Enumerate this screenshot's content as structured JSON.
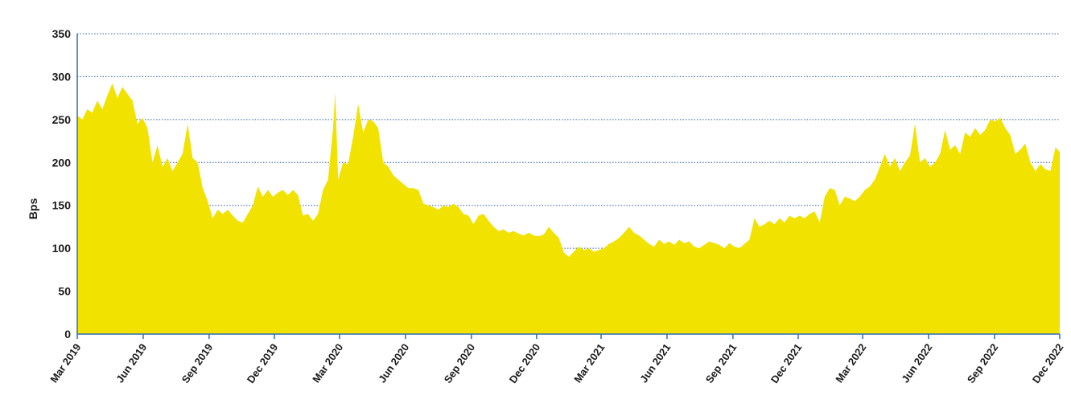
{
  "chart_data": {
    "type": "area",
    "title": "",
    "xlabel": "",
    "ylabel": "Bps",
    "ylim": [
      0,
      350
    ],
    "yticks": [
      0,
      50,
      100,
      150,
      200,
      250,
      300,
      350
    ],
    "xlim": [
      "2019-03-01",
      "2022-12-01"
    ],
    "xticks": [
      {
        "date": "2019-03-01",
        "label": "Mar 2019"
      },
      {
        "date": "2019-06-01",
        "label": "Jun 2019"
      },
      {
        "date": "2019-09-01",
        "label": "Sep 2019"
      },
      {
        "date": "2019-12-01",
        "label": "Dec 2019"
      },
      {
        "date": "2020-03-01",
        "label": "Mar 2020"
      },
      {
        "date": "2020-06-01",
        "label": "Jun 2020"
      },
      {
        "date": "2020-09-01",
        "label": "Sep 2020"
      },
      {
        "date": "2020-12-01",
        "label": "Dec 2020"
      },
      {
        "date": "2021-03-01",
        "label": "Mar 2021"
      },
      {
        "date": "2021-06-01",
        "label": "Jun 2021"
      },
      {
        "date": "2021-09-01",
        "label": "Sep 2021"
      },
      {
        "date": "2021-12-01",
        "label": "Dec 2021"
      },
      {
        "date": "2022-03-01",
        "label": "Mar 2022"
      },
      {
        "date": "2022-06-01",
        "label": "Jun 2022"
      },
      {
        "date": "2022-09-01",
        "label": "Sep 2022"
      },
      {
        "date": "2022-12-01",
        "label": "Dec 2022"
      }
    ],
    "grid": "horizontal dotted",
    "legend": "none",
    "fill_color": "#f1e200",
    "axis_color": "#2f6db5",
    "grid_color": "#2f5fa8",
    "series": [
      {
        "points": [
          [
            "2019-03-01",
            255
          ],
          [
            "2019-03-08",
            250
          ],
          [
            "2019-03-15",
            262
          ],
          [
            "2019-03-22",
            258
          ],
          [
            "2019-03-29",
            272
          ],
          [
            "2019-04-05",
            262
          ],
          [
            "2019-04-12",
            278
          ],
          [
            "2019-04-19",
            292
          ],
          [
            "2019-04-26",
            275
          ],
          [
            "2019-05-03",
            288
          ],
          [
            "2019-05-10",
            280
          ],
          [
            "2019-05-17",
            272
          ],
          [
            "2019-05-24",
            245
          ],
          [
            "2019-05-31",
            252
          ],
          [
            "2019-06-07",
            240
          ],
          [
            "2019-06-14",
            200
          ],
          [
            "2019-06-21",
            220
          ],
          [
            "2019-06-28",
            195
          ],
          [
            "2019-07-05",
            205
          ],
          [
            "2019-07-12",
            190
          ],
          [
            "2019-07-19",
            200
          ],
          [
            "2019-07-26",
            210
          ],
          [
            "2019-08-02",
            245
          ],
          [
            "2019-08-09",
            205
          ],
          [
            "2019-08-16",
            200
          ],
          [
            "2019-08-23",
            170
          ],
          [
            "2019-08-30",
            155
          ],
          [
            "2019-09-06",
            135
          ],
          [
            "2019-09-13",
            145
          ],
          [
            "2019-09-20",
            140
          ],
          [
            "2019-09-27",
            145
          ],
          [
            "2019-10-04",
            138
          ],
          [
            "2019-10-11",
            132
          ],
          [
            "2019-10-18",
            130
          ],
          [
            "2019-10-25",
            140
          ],
          [
            "2019-11-01",
            150
          ],
          [
            "2019-11-08",
            172
          ],
          [
            "2019-11-15",
            160
          ],
          [
            "2019-11-22",
            168
          ],
          [
            "2019-11-29",
            160
          ],
          [
            "2019-12-06",
            165
          ],
          [
            "2019-12-13",
            168
          ],
          [
            "2019-12-20",
            162
          ],
          [
            "2019-12-27",
            168
          ],
          [
            "2020-01-03",
            162
          ],
          [
            "2020-01-10",
            138
          ],
          [
            "2020-01-17",
            140
          ],
          [
            "2020-01-24",
            132
          ],
          [
            "2020-01-31",
            140
          ],
          [
            "2020-02-07",
            168
          ],
          [
            "2020-02-14",
            180
          ],
          [
            "2020-02-21",
            240
          ],
          [
            "2020-02-24",
            282
          ],
          [
            "2020-02-28",
            180
          ],
          [
            "2020-03-06",
            200
          ],
          [
            "2020-03-13",
            198
          ],
          [
            "2020-03-20",
            230
          ],
          [
            "2020-03-27",
            268
          ],
          [
            "2020-04-03",
            235
          ],
          [
            "2020-04-10",
            250
          ],
          [
            "2020-04-17",
            248
          ],
          [
            "2020-04-24",
            240
          ],
          [
            "2020-05-01",
            200
          ],
          [
            "2020-05-08",
            195
          ],
          [
            "2020-05-15",
            185
          ],
          [
            "2020-05-22",
            180
          ],
          [
            "2020-05-29",
            175
          ],
          [
            "2020-06-05",
            170
          ],
          [
            "2020-06-12",
            170
          ],
          [
            "2020-06-19",
            168
          ],
          [
            "2020-06-26",
            152
          ],
          [
            "2020-07-03",
            150
          ],
          [
            "2020-07-10",
            148
          ],
          [
            "2020-07-17",
            145
          ],
          [
            "2020-07-24",
            150
          ],
          [
            "2020-07-31",
            148
          ],
          [
            "2020-08-07",
            152
          ],
          [
            "2020-08-14",
            148
          ],
          [
            "2020-08-21",
            140
          ],
          [
            "2020-08-28",
            138
          ],
          [
            "2020-09-04",
            128
          ],
          [
            "2020-09-11",
            138
          ],
          [
            "2020-09-18",
            140
          ],
          [
            "2020-09-25",
            132
          ],
          [
            "2020-10-02",
            125
          ],
          [
            "2020-10-09",
            120
          ],
          [
            "2020-10-16",
            122
          ],
          [
            "2020-10-23",
            118
          ],
          [
            "2020-10-30",
            120
          ],
          [
            "2020-11-06",
            117
          ],
          [
            "2020-11-13",
            115
          ],
          [
            "2020-11-20",
            118
          ],
          [
            "2020-11-27",
            115
          ],
          [
            "2020-12-04",
            114
          ],
          [
            "2020-12-11",
            116
          ],
          [
            "2020-12-18",
            125
          ],
          [
            "2020-12-25",
            118
          ],
          [
            "2021-01-01",
            112
          ],
          [
            "2021-01-08",
            95
          ],
          [
            "2021-01-15",
            90
          ],
          [
            "2021-01-22",
            96
          ],
          [
            "2021-01-29",
            102
          ],
          [
            "2021-02-05",
            98
          ],
          [
            "2021-02-12",
            100
          ],
          [
            "2021-02-19",
            96
          ],
          [
            "2021-02-26",
            98
          ],
          [
            "2021-03-05",
            100
          ],
          [
            "2021-03-12",
            105
          ],
          [
            "2021-03-19",
            108
          ],
          [
            "2021-03-26",
            112
          ],
          [
            "2021-04-02",
            118
          ],
          [
            "2021-04-09",
            125
          ],
          [
            "2021-04-16",
            118
          ],
          [
            "2021-04-23",
            115
          ],
          [
            "2021-04-30",
            110
          ],
          [
            "2021-05-07",
            105
          ],
          [
            "2021-05-14",
            102
          ],
          [
            "2021-05-21",
            110
          ],
          [
            "2021-05-28",
            105
          ],
          [
            "2021-06-04",
            108
          ],
          [
            "2021-06-11",
            104
          ],
          [
            "2021-06-18",
            110
          ],
          [
            "2021-06-25",
            106
          ],
          [
            "2021-07-02",
            108
          ],
          [
            "2021-07-09",
            102
          ],
          [
            "2021-07-16",
            100
          ],
          [
            "2021-07-23",
            104
          ],
          [
            "2021-07-30",
            108
          ],
          [
            "2021-08-06",
            106
          ],
          [
            "2021-08-13",
            104
          ],
          [
            "2021-08-20",
            100
          ],
          [
            "2021-08-27",
            106
          ],
          [
            "2021-09-03",
            102
          ],
          [
            "2021-09-10",
            100
          ],
          [
            "2021-09-17",
            105
          ],
          [
            "2021-09-24",
            110
          ],
          [
            "2021-10-01",
            135
          ],
          [
            "2021-10-08",
            125
          ],
          [
            "2021-10-15",
            128
          ],
          [
            "2021-10-22",
            132
          ],
          [
            "2021-10-29",
            128
          ],
          [
            "2021-11-05",
            135
          ],
          [
            "2021-11-12",
            130
          ],
          [
            "2021-11-19",
            138
          ],
          [
            "2021-11-26",
            135
          ],
          [
            "2021-12-03",
            138
          ],
          [
            "2021-12-10",
            135
          ],
          [
            "2021-12-17",
            140
          ],
          [
            "2021-12-24",
            143
          ],
          [
            "2021-12-31",
            130
          ],
          [
            "2022-01-07",
            160
          ],
          [
            "2022-01-14",
            170
          ],
          [
            "2022-01-21",
            168
          ],
          [
            "2022-01-28",
            150
          ],
          [
            "2022-02-04",
            160
          ],
          [
            "2022-02-11",
            158
          ],
          [
            "2022-02-18",
            155
          ],
          [
            "2022-02-25",
            160
          ],
          [
            "2022-03-04",
            168
          ],
          [
            "2022-03-11",
            172
          ],
          [
            "2022-03-18",
            180
          ],
          [
            "2022-03-25",
            195
          ],
          [
            "2022-04-01",
            210
          ],
          [
            "2022-04-08",
            195
          ],
          [
            "2022-04-15",
            205
          ],
          [
            "2022-04-22",
            190
          ],
          [
            "2022-04-29",
            200
          ],
          [
            "2022-05-06",
            208
          ],
          [
            "2022-05-13",
            245
          ],
          [
            "2022-05-20",
            200
          ],
          [
            "2022-05-27",
            205
          ],
          [
            "2022-06-03",
            195
          ],
          [
            "2022-06-10",
            200
          ],
          [
            "2022-06-17",
            210
          ],
          [
            "2022-06-24",
            238
          ],
          [
            "2022-07-01",
            215
          ],
          [
            "2022-07-08",
            220
          ],
          [
            "2022-07-15",
            210
          ],
          [
            "2022-07-22",
            235
          ],
          [
            "2022-07-29",
            230
          ],
          [
            "2022-08-05",
            240
          ],
          [
            "2022-08-12",
            232
          ],
          [
            "2022-08-19",
            238
          ],
          [
            "2022-08-26",
            250
          ],
          [
            "2022-09-02",
            248
          ],
          [
            "2022-09-09",
            252
          ],
          [
            "2022-09-16",
            240
          ],
          [
            "2022-09-23",
            232
          ],
          [
            "2022-09-30",
            210
          ],
          [
            "2022-10-07",
            215
          ],
          [
            "2022-10-14",
            222
          ],
          [
            "2022-10-21",
            200
          ],
          [
            "2022-10-28",
            190
          ],
          [
            "2022-11-04",
            198
          ],
          [
            "2022-11-11",
            192
          ],
          [
            "2022-11-18",
            190
          ],
          [
            "2022-11-25",
            218
          ],
          [
            "2022-12-01",
            212
          ]
        ]
      }
    ]
  }
}
